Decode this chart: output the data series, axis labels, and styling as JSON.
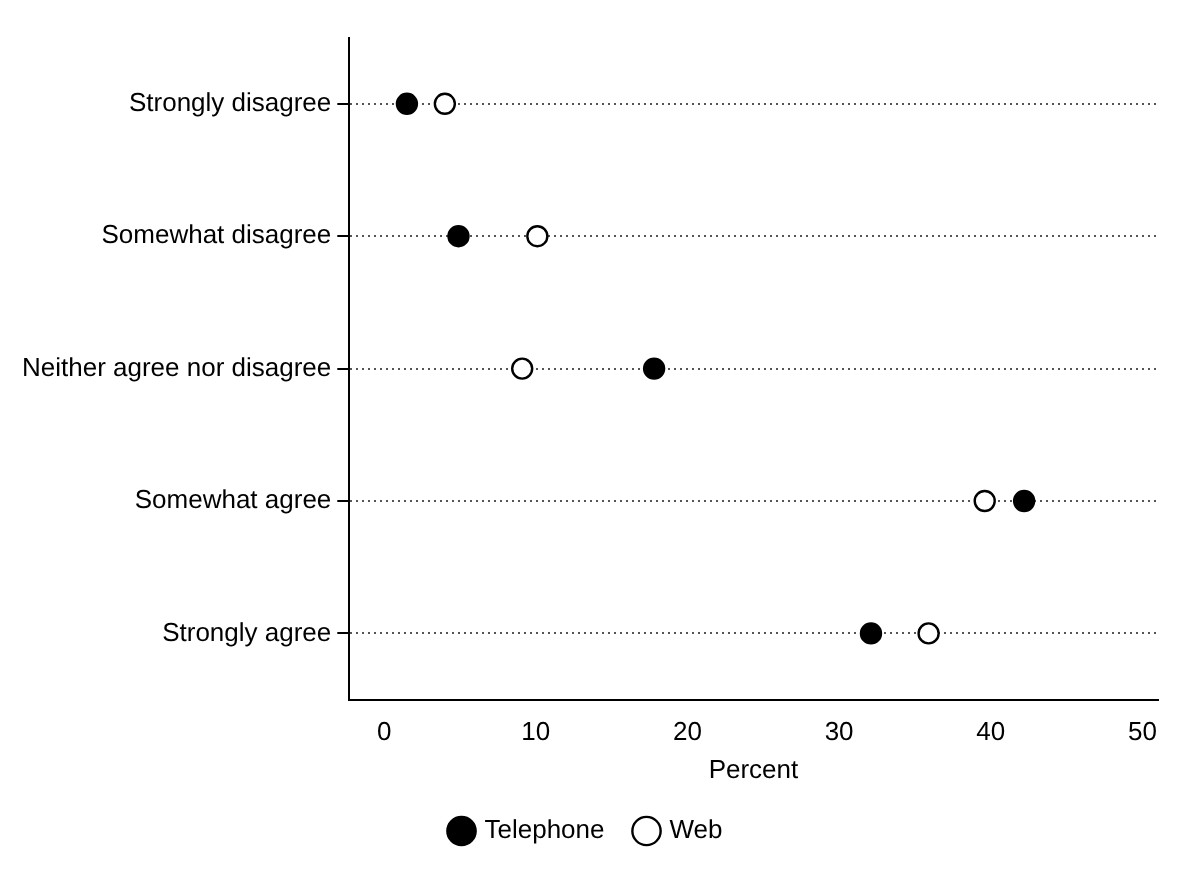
{
  "chart_data": {
    "type": "scatter",
    "orientation": "horizontal",
    "categories": [
      "Strongly disagree",
      "Somewhat disagree",
      "Neither agree nor disagree",
      "Somewhat agree",
      "Strongly agree"
    ],
    "series": [
      {
        "name": "Telephone",
        "color": "#000000",
        "values": [
          1.5,
          4.9,
          17.8,
          42.2,
          32.1
        ]
      },
      {
        "name": "Web",
        "color": "#ffffff",
        "values": [
          4.0,
          10.1,
          9.1,
          39.6,
          35.9
        ]
      }
    ],
    "xlabel": "Percent",
    "xlim": [
      -2.3,
      51
    ],
    "xticks": [
      0,
      10,
      20,
      30,
      40,
      50
    ],
    "grid": "y",
    "line_style": "dotted",
    "legend": "bottom",
    "marker": "circle"
  }
}
